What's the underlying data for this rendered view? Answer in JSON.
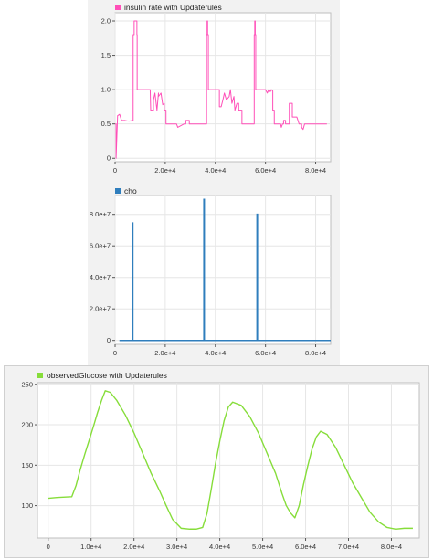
{
  "chart_data": [
    {
      "type": "line",
      "legend": "insulin rate with Updaterules",
      "color": "#ff4fb8",
      "xlim": [
        0,
        86000
      ],
      "ylim": [
        -0.05,
        2.12
      ],
      "xticks": [
        "0",
        "2.0e+4",
        "4.0e+4",
        "6.0e+4",
        "8.0e+4"
      ],
      "yticks": [
        "0",
        "0.5",
        "1.0",
        "1.5",
        "2.0"
      ],
      "series": [
        {
          "x": [
            0,
            400,
            400,
            1000,
            1800,
            2600,
            4000,
            5500,
            7200,
            7200,
            7600,
            7600,
            8700,
            8700,
            8800,
            8800,
            12000,
            14000,
            14200,
            15300,
            15300,
            15900,
            16700,
            17300,
            17300,
            18300,
            19000,
            19600,
            19600,
            20300,
            20300,
            22000,
            24500,
            25000,
            27500,
            28200,
            28200,
            29600,
            29600,
            30500,
            31500,
            32500,
            34000,
            36500,
            36500,
            36700,
            36700,
            36900,
            36900,
            37200,
            37200,
            40000,
            41600,
            41600,
            42300,
            43000,
            43600,
            44400,
            45500,
            46000,
            46600,
            47400,
            47800,
            48600,
            49300,
            49300,
            50600,
            50600,
            52000,
            54000,
            55500,
            55500,
            55700,
            55700,
            55900,
            55900,
            56100,
            56100,
            59200,
            60000,
            60700,
            61300,
            61900,
            62300,
            62900,
            62900,
            63500,
            63500,
            66000,
            66300,
            66800,
            67200,
            67200,
            68000,
            68000,
            68400,
            68400,
            69500,
            69500,
            70700,
            70700,
            72500,
            73400,
            74400,
            74400,
            75000,
            75600,
            76500,
            78000,
            79000,
            82000,
            84500
          ],
          "y": [
            0.5,
            0.5,
            0.0,
            0.62,
            0.64,
            0.55,
            0.55,
            0.54,
            0.55,
            1.8,
            1.8,
            2.0,
            2.0,
            1.8,
            1.8,
            1.0,
            1.0,
            1.0,
            0.7,
            0.7,
            0.85,
            0.95,
            0.7,
            0.95,
            0.9,
            0.95,
            0.78,
            0.8,
            0.7,
            0.7,
            0.5,
            0.5,
            0.5,
            0.45,
            0.5,
            0.5,
            0.55,
            0.55,
            0.5,
            0.5,
            0.5,
            0.5,
            0.5,
            0.5,
            1.8,
            1.8,
            2.0,
            2.0,
            1.8,
            1.8,
            1.0,
            1.0,
            1.0,
            0.75,
            0.75,
            0.85,
            0.95,
            0.85,
            0.9,
            1.0,
            0.8,
            0.9,
            0.7,
            0.8,
            0.8,
            0.7,
            0.7,
            0.5,
            0.5,
            0.5,
            0.5,
            1.8,
            1.8,
            2.0,
            2.0,
            1.8,
            1.8,
            1.0,
            1.0,
            1.0,
            0.95,
            1.0,
            0.97,
            1.0,
            0.98,
            0.7,
            0.7,
            0.5,
            0.5,
            0.45,
            0.5,
            0.5,
            0.55,
            0.55,
            0.5,
            0.5,
            0.5,
            0.5,
            0.8,
            0.8,
            0.6,
            0.6,
            0.5,
            0.5,
            0.45,
            0.42,
            0.5,
            0.5,
            0.5,
            0.5,
            0.5,
            0.5
          ]
        }
      ]
    },
    {
      "type": "bar",
      "legend": "cho",
      "color": "#2f7ebd",
      "xlim": [
        0,
        86000
      ],
      "ylim": [
        -2500000,
        92000000
      ],
      "xticks": [
        "0",
        "2.0e+4",
        "4.0e+4",
        "6.0e+4",
        "8.0e+4"
      ],
      "yticks": [
        "0",
        "2.0e+7",
        "4.0e+7",
        "6.0e+7",
        "8.0e+7"
      ],
      "series": [
        {
          "x": [
            7000,
            35500,
            56700
          ],
          "y": [
            75000000,
            90000000,
            80500000
          ]
        }
      ]
    },
    {
      "type": "line",
      "legend": "observedGlucose with Updaterules",
      "color": "#86dd3a",
      "xlim": [
        -2500,
        86500
      ],
      "ylim": [
        60,
        252
      ],
      "xticks": [
        "0",
        "1.0e+4",
        "2.0e+4",
        "3.0e+4",
        "4.0e+4",
        "5.0e+4",
        "6.0e+4",
        "7.0e+4",
        "8.0e+4"
      ],
      "yticks": [
        "100",
        "150",
        "200",
        "250"
      ],
      "series": [
        {
          "x": [
            0,
            2000,
            5500,
            6500,
            7500,
            8500,
            9500,
            10500,
            11500,
            12500,
            13300,
            14500,
            16000,
            18000,
            20000,
            22000,
            24000,
            26000,
            27500,
            29000,
            31000,
            33000,
            34500,
            36000,
            37000,
            38000,
            39000,
            40000,
            41000,
            42000,
            43000,
            45000,
            47000,
            49000,
            51000,
            53000,
            54500,
            55500,
            56500,
            57500,
            58500,
            59500,
            60500,
            61500,
            62500,
            63500,
            65000,
            67000,
            69000,
            71000,
            73000,
            75000,
            77000,
            79000,
            81000,
            83000,
            85000
          ],
          "y": [
            109,
            110,
            111,
            125,
            145,
            163,
            180,
            197,
            215,
            231,
            242,
            240,
            230,
            212,
            190,
            165,
            140,
            118,
            100,
            83,
            72,
            71,
            71,
            73,
            90,
            120,
            152,
            180,
            205,
            222,
            228,
            224,
            210,
            190,
            165,
            140,
            115,
            100,
            91,
            85,
            100,
            126,
            149,
            170,
            185,
            192,
            188,
            172,
            150,
            128,
            110,
            92,
            80,
            73,
            71,
            72,
            72
          ]
        }
      ]
    }
  ]
}
